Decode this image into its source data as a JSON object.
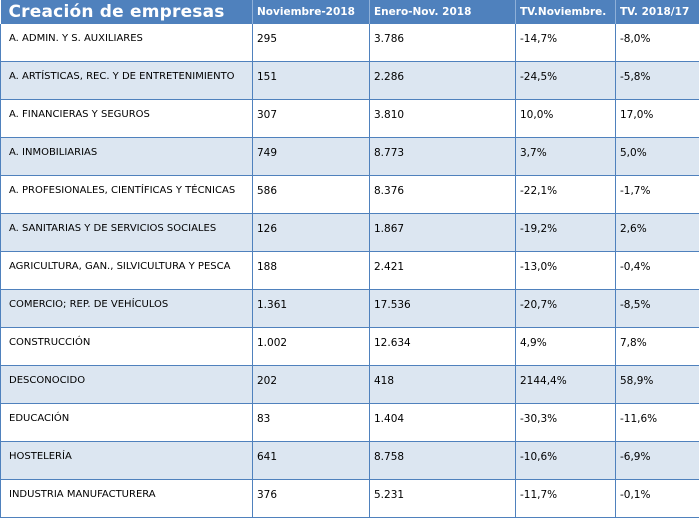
{
  "table": {
    "title": "Creación de empresas",
    "columns": [
      "Noviembre-2018",
      "Enero-Nov. 2018",
      "TV.Noviembre.",
      "TV. 2018/17"
    ],
    "rows": [
      {
        "sector": "A. ADMIN. Y S. AUXILIARES",
        "nov": "295",
        "ene_nov": "3.786",
        "tv_nov": "-14,7%",
        "tv_anual": "-8,0%"
      },
      {
        "sector": "A. ARTÍSTICAS, REC. Y DE ENTRETENIMIENTO",
        "nov": "151",
        "ene_nov": "2.286",
        "tv_nov": "-24,5%",
        "tv_anual": "-5,8%"
      },
      {
        "sector": "A. FINANCIERAS Y SEGUROS",
        "nov": "307",
        "ene_nov": "3.810",
        "tv_nov": "10,0%",
        "tv_anual": "17,0%"
      },
      {
        "sector": "A. INMOBILIARIAS",
        "nov": "749",
        "ene_nov": "8.773",
        "tv_nov": "3,7%",
        "tv_anual": "5,0%"
      },
      {
        "sector": "A. PROFESIONALES, CIENTÍFICAS Y TÉCNICAS",
        "nov": "586",
        "ene_nov": "8.376",
        "tv_nov": "-22,1%",
        "tv_anual": "-1,7%"
      },
      {
        "sector": "A. SANITARIAS Y DE SERVICIOS SOCIALES",
        "nov": "126",
        "ene_nov": "1.867",
        "tv_nov": "-19,2%",
        "tv_anual": "2,6%"
      },
      {
        "sector": "AGRICULTURA, GAN., SILVICULTURA Y PESCA",
        "nov": "188",
        "ene_nov": "2.421",
        "tv_nov": "-13,0%",
        "tv_anual": "-0,4%"
      },
      {
        "sector": "COMERCIO; REP. DE VEHÍCULOS",
        "nov": "1.361",
        "ene_nov": "17.536",
        "tv_nov": "-20,7%",
        "tv_anual": "-8,5%"
      },
      {
        "sector": "CONSTRUCCIÓN",
        "nov": "1.002",
        "ene_nov": "12.634",
        "tv_nov": "4,9%",
        "tv_anual": "7,8%"
      },
      {
        "sector": "DESCONOCIDO",
        "nov": "202",
        "ene_nov": "418",
        "tv_nov": "2144,4%",
        "tv_anual": "58,9%"
      },
      {
        "sector": "EDUCACIÓN",
        "nov": "83",
        "ene_nov": "1.404",
        "tv_nov": "-30,3%",
        "tv_anual": "-11,6%"
      },
      {
        "sector": "HOSTELERÍA",
        "nov": "641",
        "ene_nov": "8.758",
        "tv_nov": "-10,6%",
        "tv_anual": "-6,9%"
      },
      {
        "sector": "INDUSTRIA MANUFACTURERA",
        "nov": "376",
        "ene_nov": "5.231",
        "tv_nov": "-11,7%",
        "tv_anual": "-0,1%"
      }
    ]
  }
}
